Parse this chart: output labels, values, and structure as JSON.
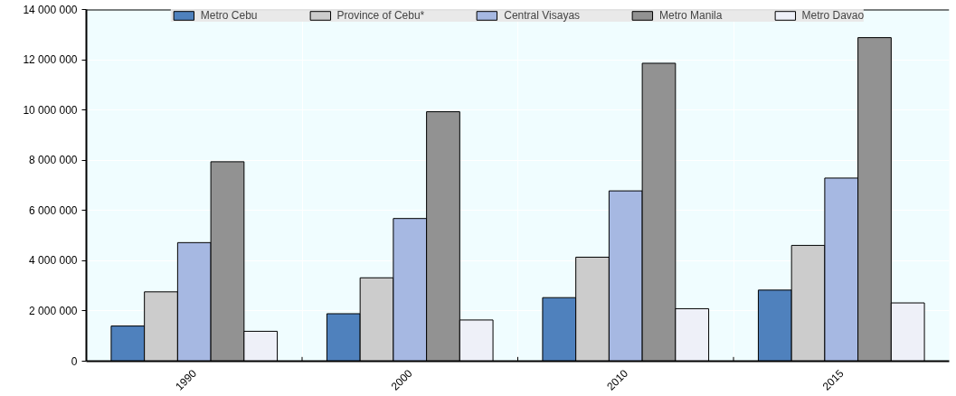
{
  "chart_data": {
    "type": "bar",
    "categories": [
      "1990",
      "2000",
      "2010",
      "2015"
    ],
    "series": [
      {
        "name": "Metro Cebu",
        "color": "#4f81bd",
        "values": [
          1400000,
          1890000,
          2530000,
          2830000
        ]
      },
      {
        "name": "Province of Cebu*",
        "color": "#cccccc",
        "values": [
          2760000,
          3320000,
          4140000,
          4610000
        ]
      },
      {
        "name": "Central Visayas",
        "color": "#a6b8e2",
        "values": [
          4720000,
          5680000,
          6780000,
          7290000
        ]
      },
      {
        "name": "Metro Manila",
        "color": "#929292",
        "values": [
          7940000,
          9930000,
          11860000,
          12880000
        ]
      },
      {
        "name": "Metro Davao",
        "color": "#eef0f8",
        "values": [
          1190000,
          1640000,
          2090000,
          2320000
        ]
      }
    ],
    "ylim": [
      0,
      14000000
    ],
    "yticks": [
      0,
      {
        "value": 2000000,
        "label": "2 000 000"
      },
      {
        "value": 4000000,
        "label": "4 000 000"
      },
      {
        "value": 6000000,
        "label": "6 000 000"
      },
      {
        "value": 8000000,
        "label": "8 000 000"
      },
      {
        "value": 10000000,
        "label": "10 000 000"
      },
      {
        "value": 12000000,
        "label": "12 000 000"
      },
      {
        "value": 14000000,
        "label": "14 000 000"
      }
    ],
    "grid": true,
    "legend": "top"
  }
}
